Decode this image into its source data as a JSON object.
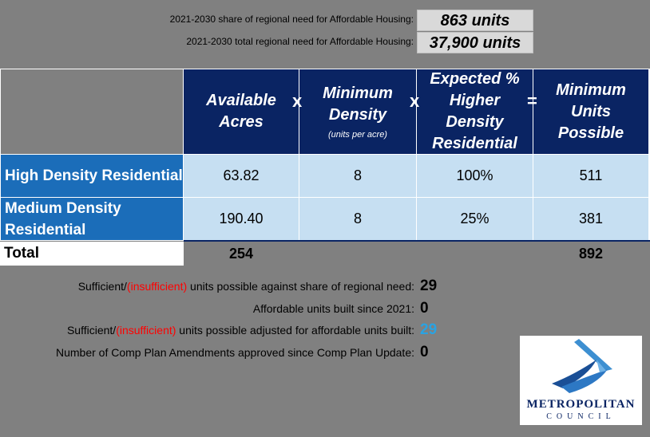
{
  "need": {
    "share_label": "2021-2030 share of regional need for Affordable Housing:",
    "share_value": "863 units",
    "total_label": "2021-2030 total regional need for Affordable Housing:",
    "total_value": "37,900 units"
  },
  "table": {
    "headers": {
      "available_acres": "Available Acres",
      "minimum_density": "Minimum Density",
      "minimum_density_sub": "(units per acre)",
      "expected_pct": "Expected % Higher Density Residential",
      "minimum_units": "Minimum Units Possible"
    },
    "operators": {
      "times1": "x",
      "times2": "x",
      "equals": "="
    },
    "rows": [
      {
        "label": "High Density Residential",
        "acres": "63.82",
        "density": "8",
        "pct": "100%",
        "units": "511"
      },
      {
        "label": "Medium Density Residential",
        "acres": "190.40",
        "density": "8",
        "pct": "25%",
        "units": "381"
      }
    ],
    "total": {
      "label": "Total",
      "acres": "254",
      "units": "892"
    }
  },
  "summary": {
    "line1": {
      "prefix": "Sufficient/",
      "red": "(insufficient)",
      "suffix": " units possible against share of regional need:",
      "value": "29"
    },
    "line2": {
      "label": "Affordable units built since 2021:",
      "value": "0"
    },
    "line3": {
      "prefix": "Sufficient/",
      "red": "(insufficient)",
      "suffix": " units possible adjusted for affordable units built:",
      "value": "29"
    },
    "line4": {
      "label": "Number of Comp Plan Amendments approved since Comp Plan Update:",
      "value": "0"
    }
  },
  "logo": {
    "line1": "METROPOLITAN",
    "line2": "COUNCIL"
  },
  "colors": {
    "header_navy": "#0a2463",
    "row_blue": "#1b6db9",
    "cell_light": "#c6dff2",
    "red_text": "#ff0000",
    "blue_value": "#29a3e3"
  }
}
